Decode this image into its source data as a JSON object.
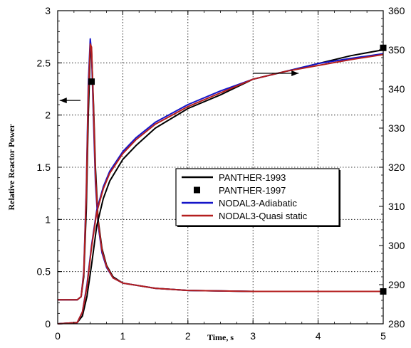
{
  "chart_data": {
    "type": "line",
    "xlabel": "Time, s",
    "ylabel": "Relative Reactor Power",
    "xlim": [
      0,
      5
    ],
    "ylim_left": [
      0,
      3
    ],
    "ylim_right": [
      280,
      360
    ],
    "x_ticks": [
      "0",
      "1",
      "2",
      "3",
      "4",
      "5"
    ],
    "y_left_ticks": [
      "0",
      "0.5",
      "1",
      "1.5",
      "2",
      "2.5",
      "3"
    ],
    "y_right_ticks": [
      "280",
      "290",
      "300",
      "310",
      "320",
      "330",
      "340",
      "350",
      "360"
    ],
    "grid": "dotted",
    "legend_position": "center-right",
    "legend": [
      {
        "label": "PANTHER-1993",
        "color": "#000000",
        "style": "line"
      },
      {
        "label": "PANTHER-1997",
        "color": "#000000",
        "style": "square-marker"
      },
      {
        "label": "NODAL3-Adiabatic",
        "color": "#1414c8",
        "style": "line"
      },
      {
        "label": "NODAL3-Quasi static",
        "color": "#b41e1e",
        "style": "line"
      }
    ],
    "series": [
      {
        "name": "PANTHER-1993",
        "axis": "left",
        "quantity": "power",
        "color": "#000000",
        "x": [
          0,
          0.3,
          0.36,
          0.4,
          0.44,
          0.47,
          0.5,
          0.52,
          0.55,
          0.58,
          0.62,
          0.68,
          0.75,
          0.85,
          1.0,
          1.5,
          2.0,
          3.0,
          4.0,
          5.0
        ],
        "y": [
          0.23,
          0.23,
          0.26,
          0.45,
          1.1,
          2.0,
          2.6,
          2.62,
          2.1,
          1.5,
          1.0,
          0.72,
          0.56,
          0.45,
          0.39,
          0.34,
          0.32,
          0.31,
          0.31,
          0.31
        ]
      },
      {
        "name": "NODAL3-Adiabatic",
        "axis": "left",
        "quantity": "power",
        "color": "#1414c8",
        "x": [
          0,
          0.3,
          0.36,
          0.4,
          0.44,
          0.47,
          0.5,
          0.52,
          0.55,
          0.58,
          0.62,
          0.68,
          0.75,
          0.85,
          1.0,
          1.5,
          2.0,
          3.0,
          4.0,
          5.0
        ],
        "y": [
          0.23,
          0.23,
          0.26,
          0.5,
          1.3,
          2.3,
          2.73,
          2.6,
          1.95,
          1.35,
          0.95,
          0.68,
          0.54,
          0.44,
          0.39,
          0.34,
          0.32,
          0.31,
          0.31,
          0.31
        ]
      },
      {
        "name": "NODAL3-Quasi static",
        "axis": "left",
        "quantity": "power",
        "color": "#b41e1e",
        "x": [
          0,
          0.3,
          0.36,
          0.4,
          0.44,
          0.47,
          0.5,
          0.52,
          0.55,
          0.58,
          0.62,
          0.68,
          0.75,
          0.85,
          1.0,
          1.5,
          2.0,
          3.0,
          4.0,
          5.0
        ],
        "y": [
          0.23,
          0.23,
          0.26,
          0.48,
          1.25,
          2.2,
          2.68,
          2.65,
          2.05,
          1.42,
          0.98,
          0.7,
          0.55,
          0.44,
          0.39,
          0.34,
          0.32,
          0.31,
          0.31,
          0.31
        ]
      },
      {
        "name": "PANTHER-1997",
        "axis": "left",
        "quantity": "power",
        "color": "#000000",
        "marker": "square",
        "x": [
          0.52,
          5.0
        ],
        "y": [
          2.32,
          0.31
        ]
      },
      {
        "name": "PANTHER-1993",
        "axis": "right",
        "quantity": "temperature",
        "color": "#000000",
        "x": [
          0,
          0.3,
          0.38,
          0.45,
          0.52,
          0.6,
          0.7,
          0.8,
          1.0,
          1.2,
          1.5,
          2.0,
          2.5,
          3.0,
          3.5,
          4.0,
          4.5,
          5.0
        ],
        "y": [
          280,
          280.3,
          282,
          287,
          295,
          305,
          312,
          316.5,
          322,
          325.5,
          330,
          335,
          338.5,
          342.5,
          344.5,
          346.5,
          348.5,
          350
        ]
      },
      {
        "name": "NODAL3-Adiabatic",
        "axis": "right",
        "quantity": "temperature",
        "color": "#1414c8",
        "x": [
          0,
          0.3,
          0.38,
          0.45,
          0.52,
          0.6,
          0.7,
          0.8,
          1.0,
          1.2,
          1.5,
          2.0,
          2.5,
          3.0,
          3.5,
          4.0,
          4.5,
          5.0
        ],
        "y": [
          280,
          280.3,
          283,
          290,
          300,
          309,
          315,
          319,
          324,
          327.5,
          331.5,
          336,
          339.5,
          342.5,
          344.5,
          346.5,
          347.8,
          349
        ]
      },
      {
        "name": "NODAL3-Quasi static",
        "axis": "right",
        "quantity": "temperature",
        "color": "#b41e1e",
        "x": [
          0,
          0.3,
          0.38,
          0.45,
          0.52,
          0.6,
          0.7,
          0.8,
          1.0,
          1.2,
          1.5,
          2.0,
          2.5,
          3.0,
          3.5,
          4.0,
          4.5,
          5.0
        ],
        "y": [
          280,
          280.3,
          283,
          289.5,
          299.5,
          308.5,
          314.5,
          318.5,
          323.5,
          327,
          331,
          335.5,
          339,
          342.5,
          344.5,
          346,
          347.5,
          348.8
        ]
      },
      {
        "name": "PANTHER-1997",
        "axis": "right",
        "quantity": "temperature",
        "color": "#000000",
        "marker": "square",
        "x": [
          5.0
        ],
        "y": [
          350.5
        ]
      }
    ],
    "annotations": [
      {
        "type": "arrow",
        "direction": "left",
        "meaning": "power curves use left axis"
      },
      {
        "type": "arrow",
        "direction": "right",
        "meaning": "temperature curves use right axis"
      }
    ]
  }
}
